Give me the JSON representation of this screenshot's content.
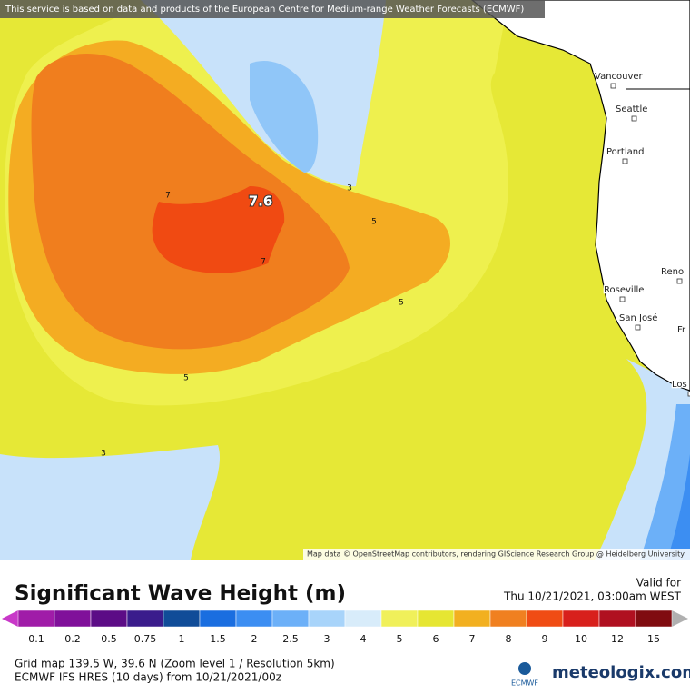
{
  "banner": "This service is based on data and products of the European Centre for Medium-range Weather Forecasts (ECMWF)",
  "map": {
    "cities": [
      "Vancouver",
      "Seattle",
      "Portland",
      "Reno",
      "Roseville",
      "San José",
      "Fr",
      "Los"
    ],
    "contour_labels": [
      "7.6",
      "7",
      "7",
      "5",
      "5",
      "5",
      "3",
      "3"
    ],
    "attribution": "Map data © OpenStreetMap contributors, rendering GIScience Research Group @ Heidelberg University"
  },
  "title": "Significant Wave Height (m)",
  "valid": {
    "label": "Valid for",
    "time": "Thu 10/21/2021, 03:00am WEST"
  },
  "legend": {
    "labels": [
      0.1,
      0.2,
      0.5,
      0.75,
      1,
      1.5,
      2,
      2.5,
      3,
      4,
      5,
      6,
      7,
      8,
      9,
      10,
      12,
      15
    ],
    "colors": [
      "#a01ca8",
      "#80109a",
      "#5c0c86",
      "#3a1c8c",
      "#104c98",
      "#1a6ee0",
      "#3c8ef2",
      "#6cb0f8",
      "#a8d4fa",
      "#d8ecfa",
      "#f0f05a",
      "#e6e632",
      "#f2b020",
      "#f08020",
      "#f04c14",
      "#d8201c",
      "#b01020",
      "#800c10"
    ]
  },
  "footer": {
    "grid": "Grid map 139.5 W, 39.6 N (Zoom level 1 / Resolution 5km)",
    "model": "ECMWF IFS HRES (10 days) from 10/21/2021/00z",
    "logo": "ECMWF",
    "brand": "meteologix.com"
  }
}
